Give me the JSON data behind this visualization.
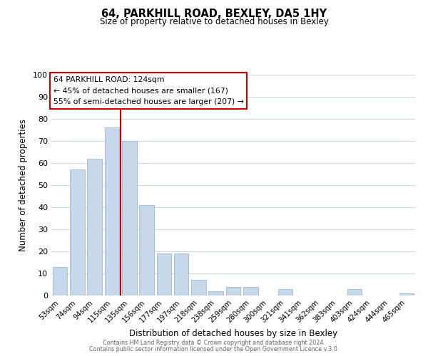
{
  "title": "64, PARKHILL ROAD, BEXLEY, DA5 1HY",
  "subtitle": "Size of property relative to detached houses in Bexley",
  "xlabel": "Distribution of detached houses by size in Bexley",
  "ylabel": "Number of detached properties",
  "bar_color": "#c8d8eb",
  "bar_edge_color": "#a8c0d4",
  "categories": [
    "53sqm",
    "74sqm",
    "94sqm",
    "115sqm",
    "135sqm",
    "156sqm",
    "177sqm",
    "197sqm",
    "218sqm",
    "238sqm",
    "259sqm",
    "280sqm",
    "300sqm",
    "321sqm",
    "341sqm",
    "362sqm",
    "383sqm",
    "403sqm",
    "424sqm",
    "444sqm",
    "465sqm"
  ],
  "values": [
    13,
    57,
    62,
    76,
    70,
    41,
    19,
    19,
    7,
    2,
    4,
    4,
    0,
    3,
    0,
    0,
    0,
    3,
    0,
    0,
    1
  ],
  "ylim": [
    0,
    100
  ],
  "yticks": [
    0,
    10,
    20,
    30,
    40,
    50,
    60,
    70,
    80,
    90,
    100
  ],
  "vline_x": 3.5,
  "vline_color": "#cc0000",
  "annotation_title": "64 PARKHILL ROAD: 124sqm",
  "annotation_line1": "← 45% of detached houses are smaller (167)",
  "annotation_line2": "55% of semi-detached houses are larger (207) →",
  "annotation_box_color": "#ffffff",
  "annotation_box_edge": "#cc0000",
  "footer1": "Contains HM Land Registry data © Crown copyright and database right 2024.",
  "footer2": "Contains public sector information licensed under the Open Government Licence v.3.0.",
  "background_color": "#ffffff",
  "grid_color": "#d0d8e0"
}
